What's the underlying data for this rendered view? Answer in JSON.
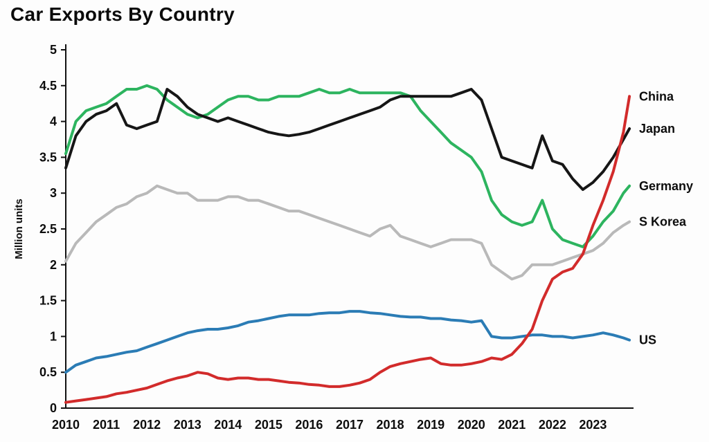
{
  "title": "Car Exports By Country",
  "colors": {
    "background": "#fdfdfd",
    "text": "#0d0d0d",
    "axis": "#111111"
  },
  "chart_data": {
    "type": "line",
    "title": "Car Exports By Country",
    "xlabel": "",
    "ylabel": "Million units",
    "xlim": [
      2010,
      2024
    ],
    "ylim": [
      0,
      5
    ],
    "grid": false,
    "legend_position": "right-edge-labels",
    "x_ticks": [
      2010,
      2011,
      2012,
      2013,
      2014,
      2015,
      2016,
      2017,
      2018,
      2019,
      2020,
      2021,
      2022,
      2023
    ],
    "y_ticks": [
      0,
      0.5,
      1,
      1.5,
      2,
      2.5,
      3,
      3.5,
      4,
      4.5,
      5
    ],
    "x": [
      2010,
      2010.25,
      2010.5,
      2010.75,
      2011,
      2011.25,
      2011.5,
      2011.75,
      2012,
      2012.25,
      2012.5,
      2012.75,
      2013,
      2013.25,
      2013.5,
      2013.75,
      2014,
      2014.25,
      2014.5,
      2014.75,
      2015,
      2015.25,
      2015.5,
      2015.75,
      2016,
      2016.25,
      2016.5,
      2016.75,
      2017,
      2017.25,
      2017.5,
      2017.75,
      2018,
      2018.25,
      2018.5,
      2018.75,
      2019,
      2019.25,
      2019.5,
      2019.75,
      2020,
      2020.25,
      2020.5,
      2020.75,
      2021,
      2021.25,
      2021.5,
      2021.75,
      2022,
      2022.25,
      2022.5,
      2022.75,
      2023,
      2023.25,
      2023.5,
      2023.75,
      2023.9
    ],
    "series": [
      {
        "name": "S Korea",
        "color": "#b9b9b9",
        "values": [
          2.05,
          2.3,
          2.45,
          2.6,
          2.7,
          2.8,
          2.85,
          2.95,
          3.0,
          3.1,
          3.05,
          3.0,
          3.0,
          2.9,
          2.9,
          2.9,
          2.95,
          2.95,
          2.9,
          2.9,
          2.85,
          2.8,
          2.75,
          2.75,
          2.7,
          2.65,
          2.6,
          2.55,
          2.5,
          2.45,
          2.4,
          2.5,
          2.55,
          2.4,
          2.35,
          2.3,
          2.25,
          2.3,
          2.35,
          2.35,
          2.35,
          2.3,
          2.0,
          1.9,
          1.8,
          1.85,
          2.0,
          2.0,
          2.0,
          2.05,
          2.1,
          2.15,
          2.2,
          2.3,
          2.45,
          2.55,
          2.6
        ]
      },
      {
        "name": "US",
        "color": "#2b7cb5",
        "values": [
          0.5,
          0.6,
          0.65,
          0.7,
          0.72,
          0.75,
          0.78,
          0.8,
          0.85,
          0.9,
          0.95,
          1.0,
          1.05,
          1.08,
          1.1,
          1.1,
          1.12,
          1.15,
          1.2,
          1.22,
          1.25,
          1.28,
          1.3,
          1.3,
          1.3,
          1.32,
          1.33,
          1.33,
          1.35,
          1.35,
          1.33,
          1.32,
          1.3,
          1.28,
          1.27,
          1.27,
          1.25,
          1.25,
          1.23,
          1.22,
          1.2,
          1.22,
          1.0,
          0.98,
          0.98,
          1.0,
          1.02,
          1.02,
          1.0,
          1.0,
          0.98,
          1.0,
          1.02,
          1.05,
          1.02,
          0.98,
          0.95
        ]
      },
      {
        "name": "Germany",
        "color": "#2db45f",
        "values": [
          3.55,
          4.0,
          4.15,
          4.2,
          4.25,
          4.35,
          4.45,
          4.45,
          4.5,
          4.45,
          4.3,
          4.2,
          4.1,
          4.05,
          4.1,
          4.2,
          4.3,
          4.35,
          4.35,
          4.3,
          4.3,
          4.35,
          4.35,
          4.35,
          4.4,
          4.45,
          4.4,
          4.4,
          4.45,
          4.4,
          4.4,
          4.4,
          4.4,
          4.4,
          4.35,
          4.15,
          4.0,
          3.85,
          3.7,
          3.6,
          3.5,
          3.3,
          2.9,
          2.7,
          2.6,
          2.55,
          2.6,
          2.9,
          2.5,
          2.35,
          2.3,
          2.25,
          2.4,
          2.6,
          2.75,
          3.0,
          3.1
        ]
      },
      {
        "name": "Japan",
        "color": "#161616",
        "values": [
          3.35,
          3.8,
          4.0,
          4.1,
          4.15,
          4.25,
          3.95,
          3.9,
          3.95,
          4.0,
          4.45,
          4.35,
          4.2,
          4.1,
          4.05,
          4.0,
          4.05,
          4.0,
          3.95,
          3.9,
          3.85,
          3.82,
          3.8,
          3.82,
          3.85,
          3.9,
          3.95,
          4.0,
          4.05,
          4.1,
          4.15,
          4.2,
          4.3,
          4.35,
          4.35,
          4.35,
          4.35,
          4.35,
          4.35,
          4.4,
          4.45,
          4.3,
          3.9,
          3.5,
          3.45,
          3.4,
          3.35,
          3.8,
          3.45,
          3.4,
          3.2,
          3.05,
          3.15,
          3.3,
          3.5,
          3.75,
          3.9
        ]
      },
      {
        "name": "China",
        "color": "#d22b2b",
        "values": [
          0.08,
          0.1,
          0.12,
          0.14,
          0.16,
          0.2,
          0.22,
          0.25,
          0.28,
          0.33,
          0.38,
          0.42,
          0.45,
          0.5,
          0.48,
          0.42,
          0.4,
          0.42,
          0.42,
          0.4,
          0.4,
          0.38,
          0.36,
          0.35,
          0.33,
          0.32,
          0.3,
          0.3,
          0.32,
          0.35,
          0.4,
          0.5,
          0.58,
          0.62,
          0.65,
          0.68,
          0.7,
          0.62,
          0.6,
          0.6,
          0.62,
          0.65,
          0.7,
          0.68,
          0.75,
          0.9,
          1.1,
          1.5,
          1.8,
          1.9,
          1.95,
          2.15,
          2.55,
          2.9,
          3.3,
          3.85,
          4.35
        ]
      }
    ]
  }
}
